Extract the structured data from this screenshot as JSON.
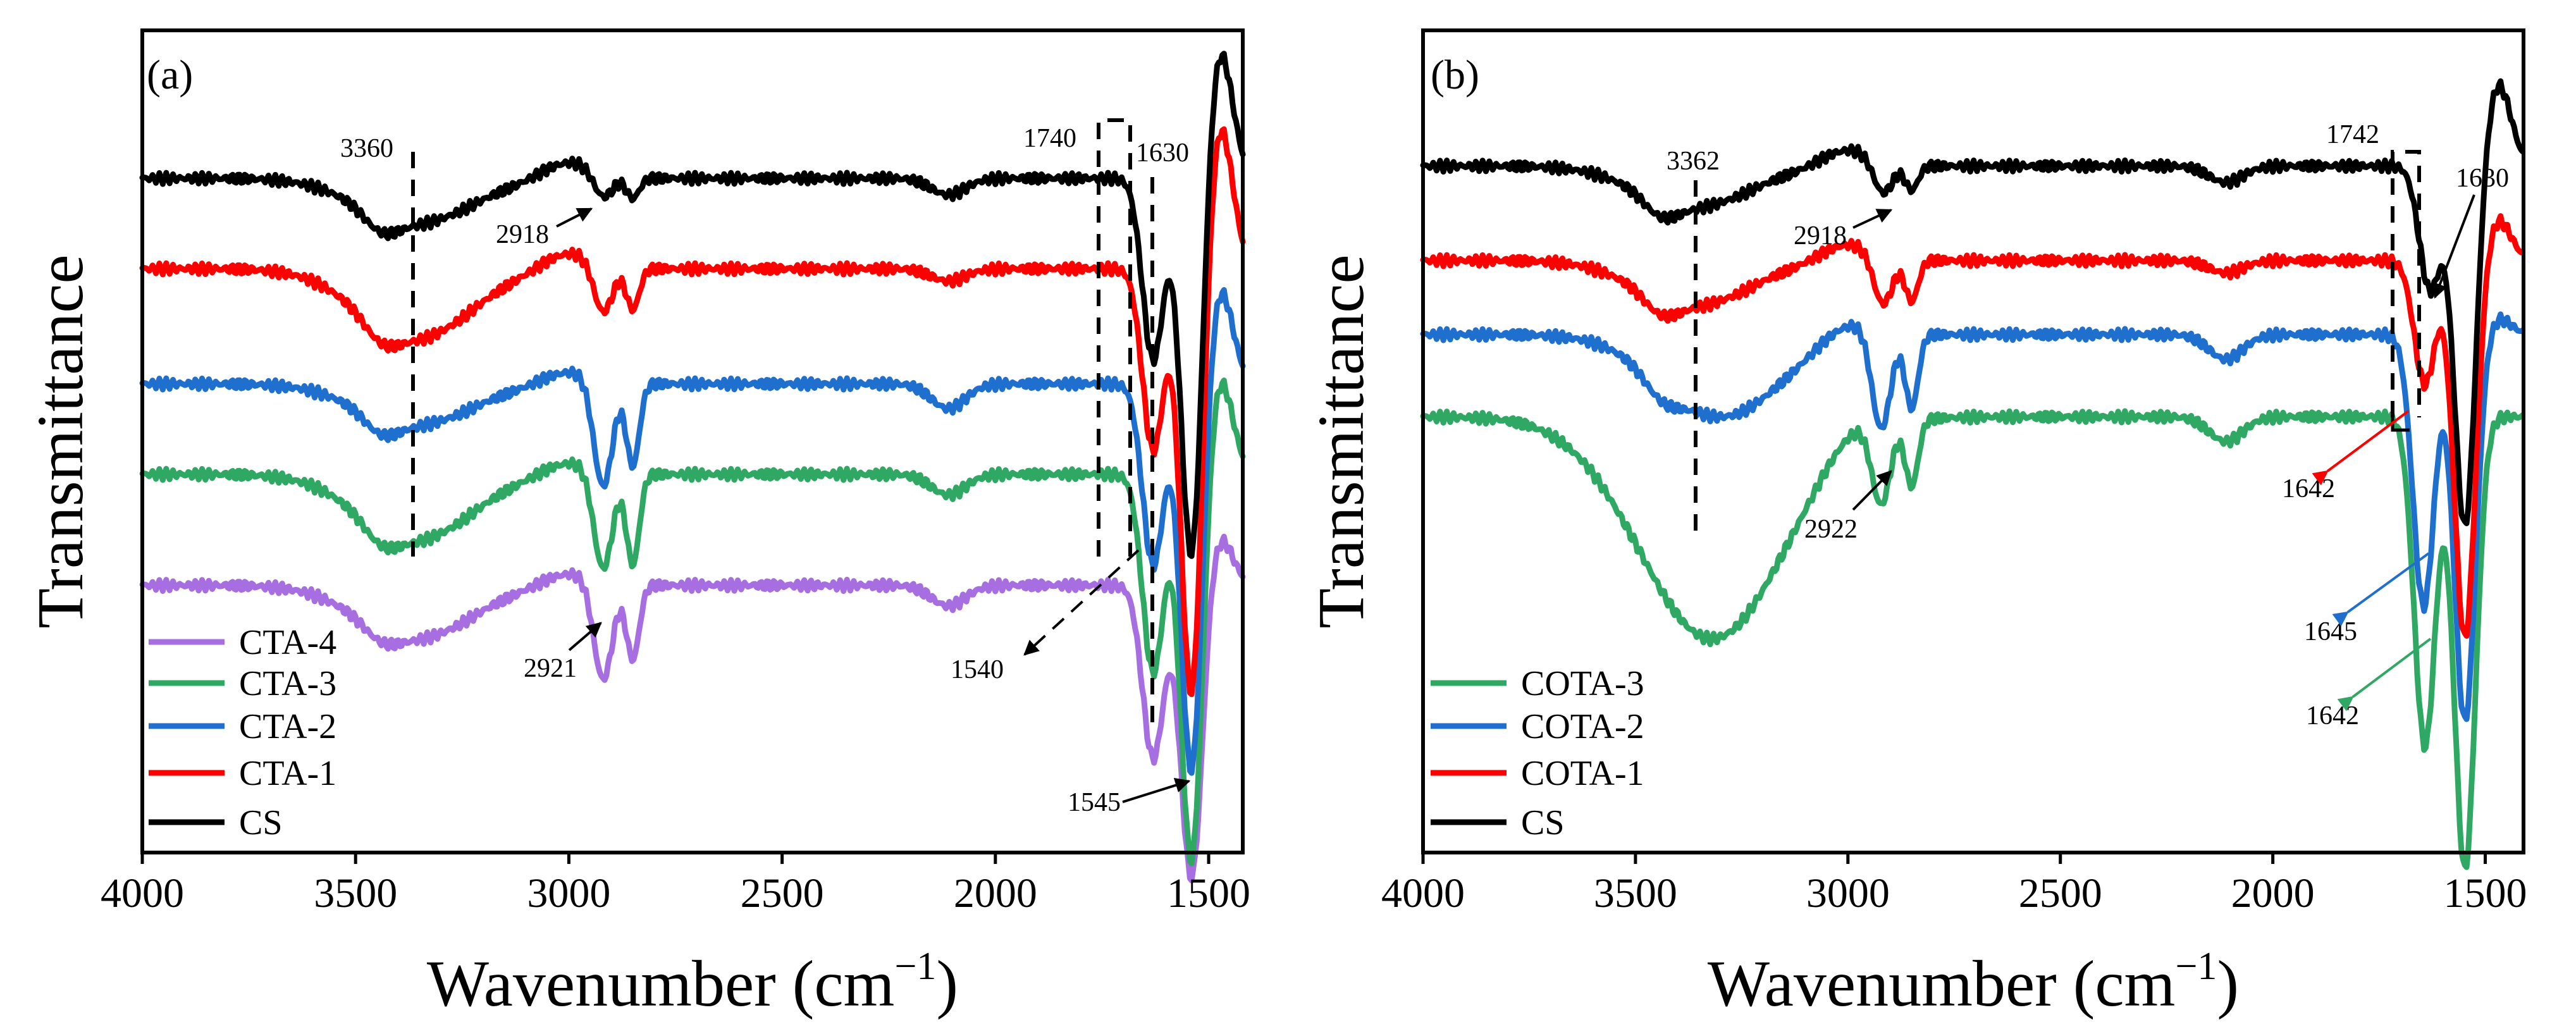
{
  "chart_data": [
    {
      "panel_label": "(a)",
      "type": "line",
      "xlabel": "Wavenumber (cm",
      "xlabel_sup": "−1",
      "xlabel_close": ")",
      "ylabel": "Transmittance",
      "xlim": [
        4000,
        1420
      ],
      "x_reversed": true,
      "xticks": [
        4000,
        3500,
        3000,
        2500,
        2000,
        1500
      ],
      "legend": [
        "CTA-4",
        "CTA-3",
        "CTA-2",
        "CTA-1",
        "CS"
      ],
      "series": [
        {
          "name": "CS",
          "color": "#000000",
          "baseline": 0.82,
          "bands": [
            [
              3360,
              130,
              -0.055
            ],
            [
              3440,
              40,
              -0.02
            ],
            [
              2920,
              22,
              -0.03
            ],
            [
              2850,
              15,
              -0.025
            ],
            [
              2110,
              40,
              -0.02
            ],
            [
              1630,
              25,
              -0.22
            ],
            [
              1540,
              25,
              -0.47
            ]
          ],
          "bumps": [
            [
              3000,
              60,
              0.02
            ],
            [
              1475,
              30,
              0.16
            ]
          ]
        },
        {
          "name": "CTA-1",
          "color": "#ff0000",
          "baseline": 0.71,
          "bands": [
            [
              3360,
              130,
              -0.085
            ],
            [
              3440,
              40,
              -0.02
            ],
            [
              2920,
              22,
              -0.06
            ],
            [
              2850,
              15,
              -0.05
            ],
            [
              2110,
              40,
              -0.015
            ],
            [
              1630,
              25,
              -0.22
            ],
            [
              1540,
              25,
              -0.53
            ]
          ],
          "bumps": [
            [
              3000,
              60,
              0.02
            ],
            [
              1475,
              30,
              0.18
            ]
          ]
        },
        {
          "name": "CTA-2",
          "color": "#1f6fcf",
          "baseline": 0.57,
          "bands": [
            [
              3360,
              130,
              -0.05
            ],
            [
              3440,
              40,
              -0.02
            ],
            [
              2920,
              22,
              -0.13
            ],
            [
              2850,
              15,
              -0.1
            ],
            [
              2110,
              40,
              -0.03
            ],
            [
              1630,
              25,
              -0.22
            ],
            [
              1540,
              25,
              -0.48
            ]
          ],
          "bumps": [
            [
              3000,
              60,
              0.015
            ],
            [
              1475,
              30,
              0.12
            ]
          ]
        },
        {
          "name": "CTA-3",
          "color": "#2fa864",
          "baseline": 0.46,
          "bands": [
            [
              3360,
              130,
              -0.08
            ],
            [
              3440,
              40,
              -0.02
            ],
            [
              2920,
              22,
              -0.12
            ],
            [
              2850,
              15,
              -0.11
            ],
            [
              2110,
              40,
              -0.025
            ],
            [
              1630,
              25,
              -0.24
            ],
            [
              1540,
              25,
              -0.48
            ]
          ],
          "bumps": [
            [
              3000,
              60,
              0.015
            ],
            [
              1475,
              30,
              0.12
            ]
          ]
        },
        {
          "name": "CTA-4",
          "color": "#a66ee0",
          "baseline": 0.325,
          "bands": [
            [
              3360,
              130,
              -0.065
            ],
            [
              3440,
              40,
              -0.015
            ],
            [
              2920,
              22,
              -0.12
            ],
            [
              2850,
              15,
              -0.09
            ],
            [
              2110,
              40,
              -0.025
            ],
            [
              1630,
              25,
              -0.21
            ],
            [
              1540,
              25,
              -0.36
            ]
          ],
          "bumps": [
            [
              3000,
              60,
              0.015
            ],
            [
              1475,
              30,
              0.06
            ]
          ]
        }
      ],
      "annotations": {
        "a3360": "3360",
        "a1740": "1740",
        "a1630": "1630",
        "a2918": "2918",
        "a2921": "2921",
        "a1540": "1540",
        "a1545": "1545"
      }
    },
    {
      "panel_label": "(b)",
      "type": "line",
      "xlabel": "Wavenumber (cm",
      "xlabel_sup": "−1",
      "xlabel_close": ")",
      "ylabel": "Transmittance",
      "xlim": [
        4000,
        1410
      ],
      "x_reversed": true,
      "xticks": [
        4000,
        3500,
        3000,
        2500,
        2000,
        1500
      ],
      "legend": [
        "COTA-3",
        "COTA-2",
        "COTA-1",
        "CS"
      ],
      "series": [
        {
          "name": "CS",
          "color": "#000000",
          "baseline": 0.835,
          "bands": [
            [
              3362,
              130,
              -0.05
            ],
            [
              3440,
              40,
              -0.02
            ],
            [
              2918,
              22,
              -0.04
            ],
            [
              2850,
              15,
              -0.03
            ],
            [
              2110,
              40,
              -0.02
            ],
            [
              1630,
              25,
              -0.15
            ],
            [
              1548,
              25,
              -0.44
            ]
          ],
          "bumps": [
            [
              3000,
              60,
              0.02
            ],
            [
              1470,
              30,
              0.1
            ]
          ]
        },
        {
          "name": "COTA-1",
          "color": "#ff0000",
          "baseline": 0.72,
          "bands": [
            [
              3362,
              130,
              -0.055
            ],
            [
              3440,
              40,
              -0.02
            ],
            [
              2918,
              22,
              -0.06
            ],
            [
              2850,
              15,
              -0.05
            ],
            [
              2110,
              40,
              -0.015
            ],
            [
              1642,
              25,
              -0.15
            ],
            [
              1548,
              25,
              -0.46
            ]
          ],
          "bumps": [
            [
              3000,
              60,
              0.02
            ],
            [
              1470,
              30,
              0.05
            ]
          ]
        },
        {
          "name": "COTA-2",
          "color": "#1f6fcf",
          "baseline": 0.63,
          "bands": [
            [
              3300,
              140,
              -0.1
            ],
            [
              3440,
              40,
              -0.02
            ],
            [
              2922,
              22,
              -0.12
            ],
            [
              2850,
              15,
              -0.09
            ],
            [
              2110,
              40,
              -0.03
            ],
            [
              1645,
              25,
              -0.33
            ],
            [
              1548,
              25,
              -0.47
            ]
          ],
          "bumps": [
            [
              3000,
              60,
              0.02
            ],
            [
              1470,
              30,
              0.02
            ]
          ]
        },
        {
          "name": "COTA-3",
          "color": "#2fa864",
          "baseline": 0.53,
          "bands": [
            [
              3320,
              170,
              -0.27
            ],
            [
              2922,
              22,
              -0.1
            ],
            [
              2850,
              15,
              -0.08
            ],
            [
              2110,
              40,
              -0.03
            ],
            [
              1642,
              25,
              -0.4
            ],
            [
              1548,
              25,
              -0.55
            ]
          ],
          "bumps": [
            [
              2990,
              60,
              0.02
            ]
          ]
        }
      ],
      "annotations": {
        "b3362": "3362",
        "b1742": "1742",
        "b1630": "1630",
        "b2918": "2918",
        "b2922": "2922",
        "b1642r": "1642",
        "b1645": "1645",
        "b1642g": "1642"
      }
    }
  ]
}
